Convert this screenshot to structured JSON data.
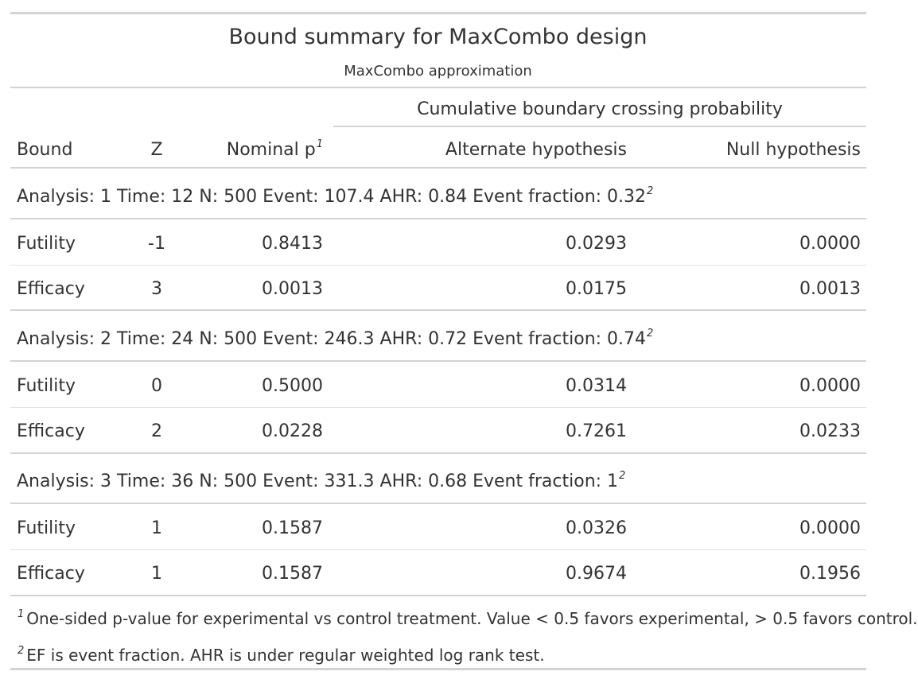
{
  "title": "Bound summary for MaxCombo design",
  "subtitle": "MaxCombo approximation",
  "spanner": "Cumulative boundary crossing probability",
  "columns": {
    "bound": "Bound",
    "z": "Z",
    "nominal_p": "Nominal p",
    "nominal_p_mark": "1",
    "alt": "Alternate hypothesis",
    "null": "Null hypothesis"
  },
  "groups": [
    {
      "label": "Analysis: 1 Time: 12 N: 500 Event: 107.4 AHR: 0.84 Event fraction: 0.32",
      "mark": "2",
      "rows": [
        {
          "bound": "Futility",
          "z": "-1",
          "nominal_p": "0.8413",
          "alt": "0.0293",
          "null": "0.0000"
        },
        {
          "bound": "Efficacy",
          "z": "3",
          "nominal_p": "0.0013",
          "alt": "0.0175",
          "null": "0.0013"
        }
      ]
    },
    {
      "label": "Analysis: 2 Time: 24 N: 500 Event: 246.3 AHR: 0.72 Event fraction: 0.74",
      "mark": "2",
      "rows": [
        {
          "bound": "Futility",
          "z": "0",
          "nominal_p": "0.5000",
          "alt": "0.0314",
          "null": "0.0000"
        },
        {
          "bound": "Efficacy",
          "z": "2",
          "nominal_p": "0.0228",
          "alt": "0.7261",
          "null": "0.0233"
        }
      ]
    },
    {
      "label": "Analysis: 3 Time: 36 N: 500 Event: 331.3 AHR: 0.68 Event fraction: 1",
      "mark": "2",
      "rows": [
        {
          "bound": "Futility",
          "z": "1",
          "nominal_p": "0.1587",
          "alt": "0.0326",
          "null": "0.0000"
        },
        {
          "bound": "Efficacy",
          "z": "1",
          "nominal_p": "0.1587",
          "alt": "0.9674",
          "null": "0.1956"
        }
      ]
    }
  ],
  "footnotes": [
    {
      "mark": "1",
      "text": "One-sided p-value for experimental vs control treatment. Value < 0.5 favors experimental, > 0.5 favors control."
    },
    {
      "mark": "2",
      "text": "EF is event fraction. AHR is under regular weighted log rank test."
    }
  ]
}
